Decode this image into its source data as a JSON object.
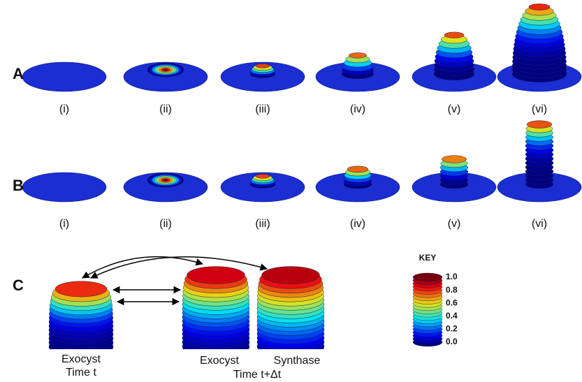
{
  "rows": [
    {
      "label": "A",
      "panels": [
        "(i)",
        "(ii)",
        "(iii)",
        "(iv)",
        "(v)",
        "(vi)"
      ]
    },
    {
      "label": "B",
      "panels": [
        "(i)",
        "(ii)",
        "(iii)",
        "(iv)",
        "(v)",
        "(vi)"
      ]
    }
  ],
  "row_c": {
    "label": "C",
    "captions": [
      "Exocyst",
      "Time t",
      "Exocyst",
      "Synthase",
      "Time t+Δt"
    ]
  },
  "key": {
    "title": "KEY",
    "labels": [
      "1.0",
      "0.8",
      "0.6",
      "0.4",
      "0.2",
      "0.0"
    ]
  }
}
